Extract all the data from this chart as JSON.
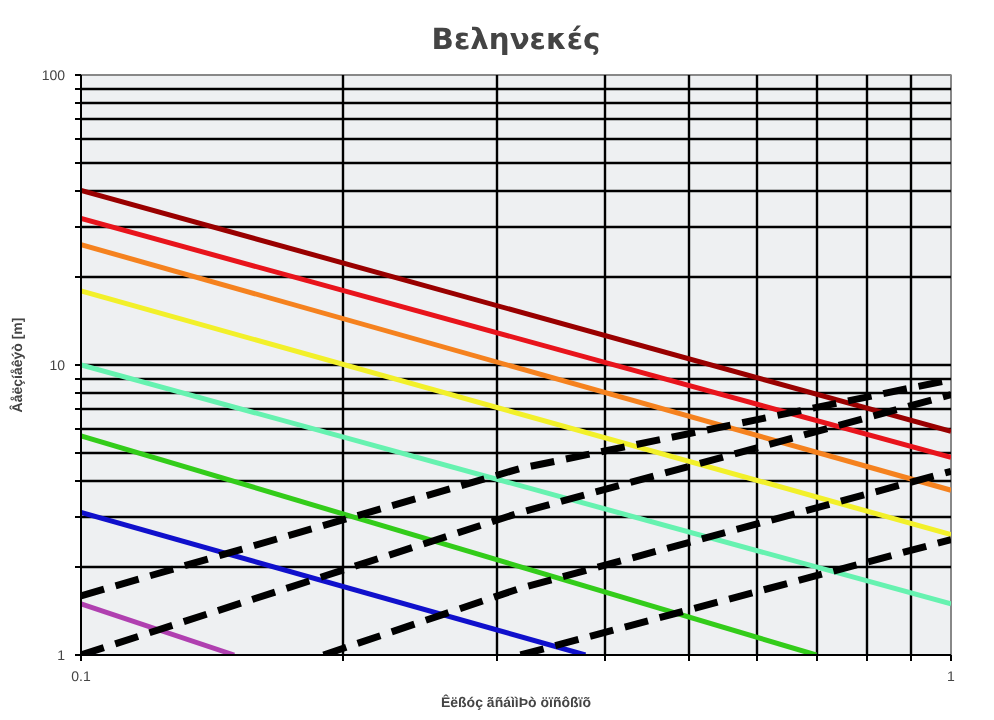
{
  "chart_data": {
    "type": "line",
    "title": "Βεληνεκές",
    "xlabel": "Êëßóç ãñáììÞò öïñôßïõ",
    "ylabel": "Âåëçíåêýò [m]",
    "log": "xy",
    "grid": true,
    "marker": "none",
    "xlim": [
      0.1,
      1
    ],
    "ylim": [
      1,
      100
    ],
    "xticks": [
      0.1,
      {
        "value": 0.2,
        "label": null
      },
      {
        "value": 0.3,
        "label": null
      },
      {
        "value": 0.4,
        "label": null
      },
      {
        "value": 0.5,
        "label": null
      },
      {
        "value": 0.6,
        "label": null
      },
      {
        "value": 0.7,
        "label": null
      },
      {
        "value": 0.8,
        "label": null
      },
      {
        "value": 0.9,
        "label": null
      },
      1
    ],
    "yticks": [
      1,
      {
        "value": 2,
        "label": null
      },
      {
        "value": 3,
        "label": null
      },
      {
        "value": 4,
        "label": null
      },
      {
        "value": 5,
        "label": null
      },
      {
        "value": 6,
        "label": null
      },
      {
        "value": 7,
        "label": null
      },
      {
        "value": 8,
        "label": null
      },
      {
        "value": 9,
        "label": null
      },
      10,
      {
        "value": 20,
        "label": null
      },
      {
        "value": 30,
        "label": null
      },
      {
        "value": 40,
        "label": null
      },
      {
        "value": 50,
        "label": null
      },
      {
        "value": 60,
        "label": null
      },
      {
        "value": 70,
        "label": null
      },
      {
        "value": 80,
        "label": null
      },
      {
        "value": 90,
        "label": null
      },
      100
    ],
    "series": [
      {
        "color": "#990000",
        "line_style": "solid",
        "x": [
          0.1,
          1
        ],
        "values": [
          40,
          5.9
        ]
      },
      {
        "color": "#e8141c",
        "line_style": "solid",
        "x": [
          0.1,
          1
        ],
        "values": [
          32,
          4.8
        ]
      },
      {
        "color": "#f5821f",
        "line_style": "solid",
        "x": [
          0.1,
          1
        ],
        "values": [
          26,
          3.7
        ]
      },
      {
        "color": "#f2f02a",
        "line_style": "solid",
        "x": [
          0.1,
          1
        ],
        "values": [
          18,
          2.6
        ]
      },
      {
        "color": "#66f2b0",
        "line_style": "solid",
        "x": [
          0.1,
          1
        ],
        "values": [
          10,
          1.5
        ]
      },
      {
        "color": "#33cc1a",
        "line_style": "solid",
        "x": [
          0.1,
          0.7
        ],
        "values": [
          5.7,
          1
        ]
      },
      {
        "color": "#1010cc",
        "line_style": "solid",
        "x": [
          0.1,
          0.38
        ],
        "values": [
          3.1,
          1
        ]
      },
      {
        "color": "#b040b0",
        "line_style": "solid",
        "x": [
          0.1,
          0.15
        ],
        "values": [
          1.5,
          1
        ]
      },
      {
        "color": "#000000",
        "line_style": "dashed",
        "x": [
          0.1,
          0.32,
          1
        ],
        "values": [
          1.6,
          4.4,
          8.9
        ]
      },
      {
        "color": "#000000",
        "line_style": "dashed",
        "x": [
          0.1,
          0.32,
          1
        ],
        "values": [
          1.0,
          3.1,
          7.9
        ]
      },
      {
        "color": "#000000",
        "line_style": "dashed",
        "x": [
          0.19,
          0.32,
          1
        ],
        "values": [
          1.0,
          1.7,
          4.3
        ]
      },
      {
        "color": "#000000",
        "line_style": "dashed",
        "x": [
          0.32,
          1
        ],
        "values": [
          1.0,
          2.5
        ]
      }
    ]
  }
}
